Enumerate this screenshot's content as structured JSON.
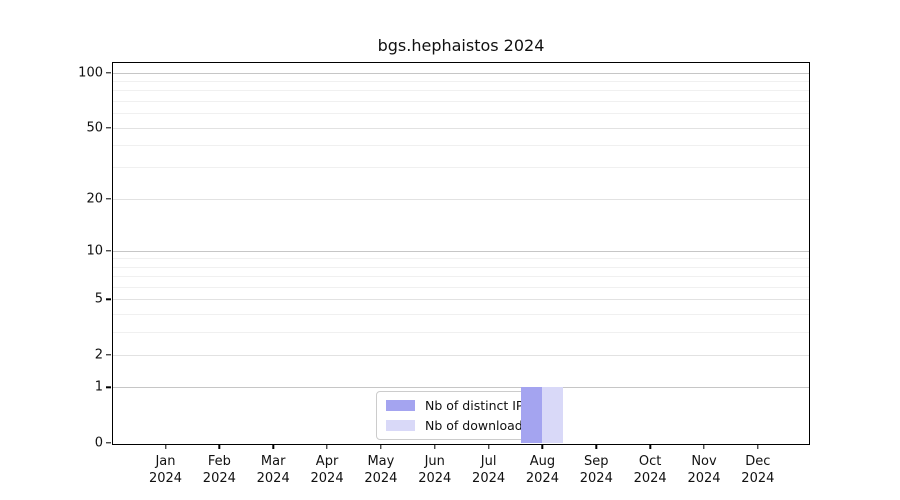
{
  "title": "bgs.hephaistos 2024",
  "chart_data": {
    "type": "bar",
    "title": "bgs.hephaistos 2024",
    "categories": [
      "Jan",
      "Feb",
      "Mar",
      "Apr",
      "May",
      "Jun",
      "Jul",
      "Aug",
      "Sep",
      "Oct",
      "Nov",
      "Dec"
    ],
    "year": "2024",
    "series": [
      {
        "name": "Nb of distinct IPs",
        "color": "#a4a4f0",
        "values": [
          0,
          0,
          0,
          0,
          0,
          0,
          0,
          1,
          0,
          0,
          0,
          0
        ]
      },
      {
        "name": "Nb of downloads",
        "color": "#d9d9f8",
        "values": [
          0,
          0,
          0,
          0,
          0,
          0,
          0,
          1,
          0,
          0,
          0,
          0
        ]
      }
    ],
    "y_scale": "log1p",
    "y_major_ticks": [
      0,
      1,
      2,
      5,
      10,
      20,
      50,
      100
    ],
    "y_decade_ticks": [
      1,
      10,
      100
    ],
    "y_minor_ticks": [
      3,
      4,
      6,
      7,
      8,
      9,
      30,
      40,
      60,
      70,
      80,
      90
    ],
    "ylim": [
      0,
      113
    ],
    "xlabel": "",
    "ylabel": "",
    "grid": true,
    "legend_position": "lower center"
  },
  "colors": {
    "background": "#ffffff",
    "spine": "#000000",
    "grid_decade": "#c6c6c6",
    "grid_major": "#e2e2e2",
    "grid_minor": "#f0f0f0",
    "legend_border": "#cccccc"
  }
}
